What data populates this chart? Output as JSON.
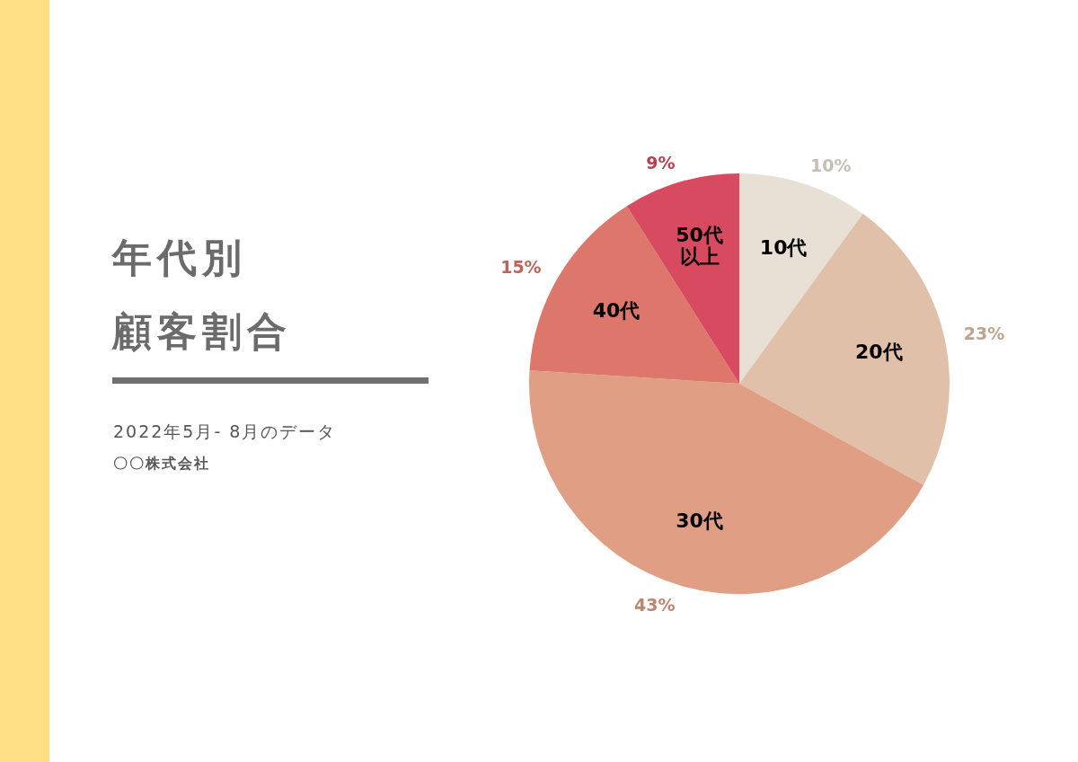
{
  "chart_data": {
    "type": "pie",
    "title": "年代別",
    "subtitle": "顧客割合",
    "annotations": [
      "2022年5月- 8月のデータ",
      "〇〇株式会社"
    ],
    "categories": [
      "10代",
      "20代",
      "30代",
      "40代",
      "50代以上"
    ],
    "values": [
      10,
      23,
      43,
      15,
      9
    ],
    "colors": [
      "#e8dfd5",
      "#e0c0a8",
      "#e09e84",
      "#de776b",
      "#d84a60"
    ],
    "value_labels": [
      "10%",
      "23%",
      "43%",
      "15%",
      "9%"
    ]
  }
}
